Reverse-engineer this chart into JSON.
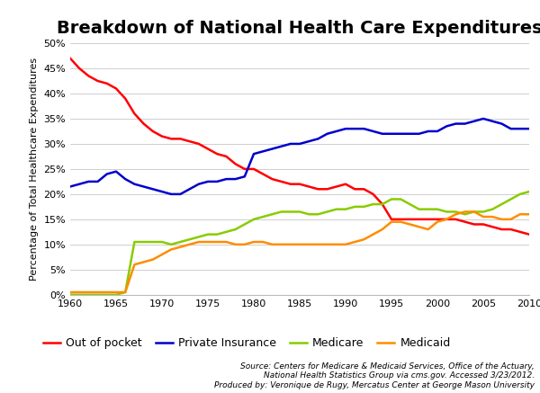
{
  "title": "Breakdown of National Health Care Expenditures",
  "ylabel": "Percentage of Total Healthcare Expenditures",
  "xlabel": "",
  "xlim": [
    1960,
    2010
  ],
  "ylim": [
    0,
    50
  ],
  "yticks": [
    0,
    5,
    10,
    15,
    20,
    25,
    30,
    35,
    40,
    45,
    50
  ],
  "xticks": [
    1960,
    1965,
    1970,
    1975,
    1980,
    1985,
    1990,
    1995,
    2000,
    2005,
    2010
  ],
  "source_text": "Source: Centers for Medicare & Medicaid Services, Office of the Actuary,\nNational Health Statistics Group via cms.gov. Accessed 3/23/2012.\nProduced by: Veronique de Rugy, Mercatus Center at George Mason University",
  "series": {
    "Out of pocket": {
      "color": "#FF0000",
      "years": [
        1960,
        1961,
        1962,
        1963,
        1964,
        1965,
        1966,
        1967,
        1968,
        1969,
        1970,
        1971,
        1972,
        1973,
        1974,
        1975,
        1976,
        1977,
        1978,
        1979,
        1980,
        1981,
        1982,
        1983,
        1984,
        1985,
        1986,
        1987,
        1988,
        1989,
        1990,
        1991,
        1992,
        1993,
        1994,
        1995,
        1996,
        1997,
        1998,
        1999,
        2000,
        2001,
        2002,
        2003,
        2004,
        2005,
        2006,
        2007,
        2008,
        2009,
        2010
      ],
      "values": [
        47,
        45,
        43.5,
        42.5,
        42,
        41,
        39,
        36,
        34,
        32.5,
        31.5,
        31,
        31,
        30.5,
        30,
        29,
        28,
        27.5,
        26,
        25,
        25,
        24,
        23,
        22.5,
        22,
        22,
        21.5,
        21,
        21,
        21.5,
        22,
        21,
        21,
        20,
        18,
        15,
        15,
        15,
        15,
        15,
        15,
        15,
        15,
        14.5,
        14,
        14,
        13.5,
        13,
        13,
        12.5,
        12
      ]
    },
    "Private Insurance": {
      "color": "#0000CC",
      "years": [
        1960,
        1961,
        1962,
        1963,
        1964,
        1965,
        1966,
        1967,
        1968,
        1969,
        1970,
        1971,
        1972,
        1973,
        1974,
        1975,
        1976,
        1977,
        1978,
        1979,
        1980,
        1981,
        1982,
        1983,
        1984,
        1985,
        1986,
        1987,
        1988,
        1989,
        1990,
        1991,
        1992,
        1993,
        1994,
        1995,
        1996,
        1997,
        1998,
        1999,
        2000,
        2001,
        2002,
        2003,
        2004,
        2005,
        2006,
        2007,
        2008,
        2009,
        2010
      ],
      "values": [
        21.5,
        22,
        22.5,
        22.5,
        24,
        24.5,
        23,
        22,
        21.5,
        21,
        20.5,
        20,
        20,
        21,
        22,
        22.5,
        22.5,
        23,
        23,
        23.5,
        28,
        28.5,
        29,
        29.5,
        30,
        30,
        30.5,
        31,
        32,
        32.5,
        33,
        33,
        33,
        32.5,
        32,
        32,
        32,
        32,
        32,
        32.5,
        32.5,
        33.5,
        34,
        34,
        34.5,
        35,
        34.5,
        34,
        33,
        33,
        33
      ]
    },
    "Medicare": {
      "color": "#88CC00",
      "years": [
        1960,
        1961,
        1962,
        1963,
        1964,
        1965,
        1966,
        1967,
        1968,
        1969,
        1970,
        1971,
        1972,
        1973,
        1974,
        1975,
        1976,
        1977,
        1978,
        1979,
        1980,
        1981,
        1982,
        1983,
        1984,
        1985,
        1986,
        1987,
        1988,
        1989,
        1990,
        1991,
        1992,
        1993,
        1994,
        1995,
        1996,
        1997,
        1998,
        1999,
        2000,
        2001,
        2002,
        2003,
        2004,
        2005,
        2006,
        2007,
        2008,
        2009,
        2010
      ],
      "values": [
        0,
        0,
        0,
        0,
        0,
        0,
        0.5,
        10.5,
        10.5,
        10.5,
        10.5,
        10,
        10.5,
        11,
        11.5,
        12,
        12,
        12.5,
        13,
        14,
        15,
        15.5,
        16,
        16.5,
        16.5,
        16.5,
        16,
        16,
        16.5,
        17,
        17,
        17.5,
        17.5,
        18,
        18,
        19,
        19,
        18,
        17,
        17,
        17,
        16.5,
        16.5,
        16,
        16.5,
        16.5,
        17,
        18,
        19,
        20,
        20.5
      ]
    },
    "Medicaid": {
      "color": "#FF8C00",
      "years": [
        1960,
        1961,
        1962,
        1963,
        1964,
        1965,
        1966,
        1967,
        1968,
        1969,
        1970,
        1971,
        1972,
        1973,
        1974,
        1975,
        1976,
        1977,
        1978,
        1979,
        1980,
        1981,
        1982,
        1983,
        1984,
        1985,
        1986,
        1987,
        1988,
        1989,
        1990,
        1991,
        1992,
        1993,
        1994,
        1995,
        1996,
        1997,
        1998,
        1999,
        2000,
        2001,
        2002,
        2003,
        2004,
        2005,
        2006,
        2007,
        2008,
        2009,
        2010
      ],
      "values": [
        0.5,
        0.5,
        0.5,
        0.5,
        0.5,
        0.5,
        0.5,
        6,
        6.5,
        7,
        8,
        9,
        9.5,
        10,
        10.5,
        10.5,
        10.5,
        10.5,
        10,
        10,
        10.5,
        10.5,
        10,
        10,
        10,
        10,
        10,
        10,
        10,
        10,
        10,
        10.5,
        11,
        12,
        13,
        14.5,
        14.5,
        14,
        13.5,
        13,
        14.5,
        15,
        16,
        16.5,
        16.5,
        15.5,
        15.5,
        15,
        15,
        16,
        16
      ]
    }
  },
  "legend_entries": [
    "Out of pocket",
    "Private Insurance",
    "Medicare",
    "Medicaid"
  ],
  "background_color": "#FFFFFF",
  "grid_color": "#BBBBBB",
  "title_fontsize": 14,
  "axis_label_fontsize": 8,
  "tick_fontsize": 8,
  "legend_fontsize": 9,
  "source_fontsize": 6.5
}
